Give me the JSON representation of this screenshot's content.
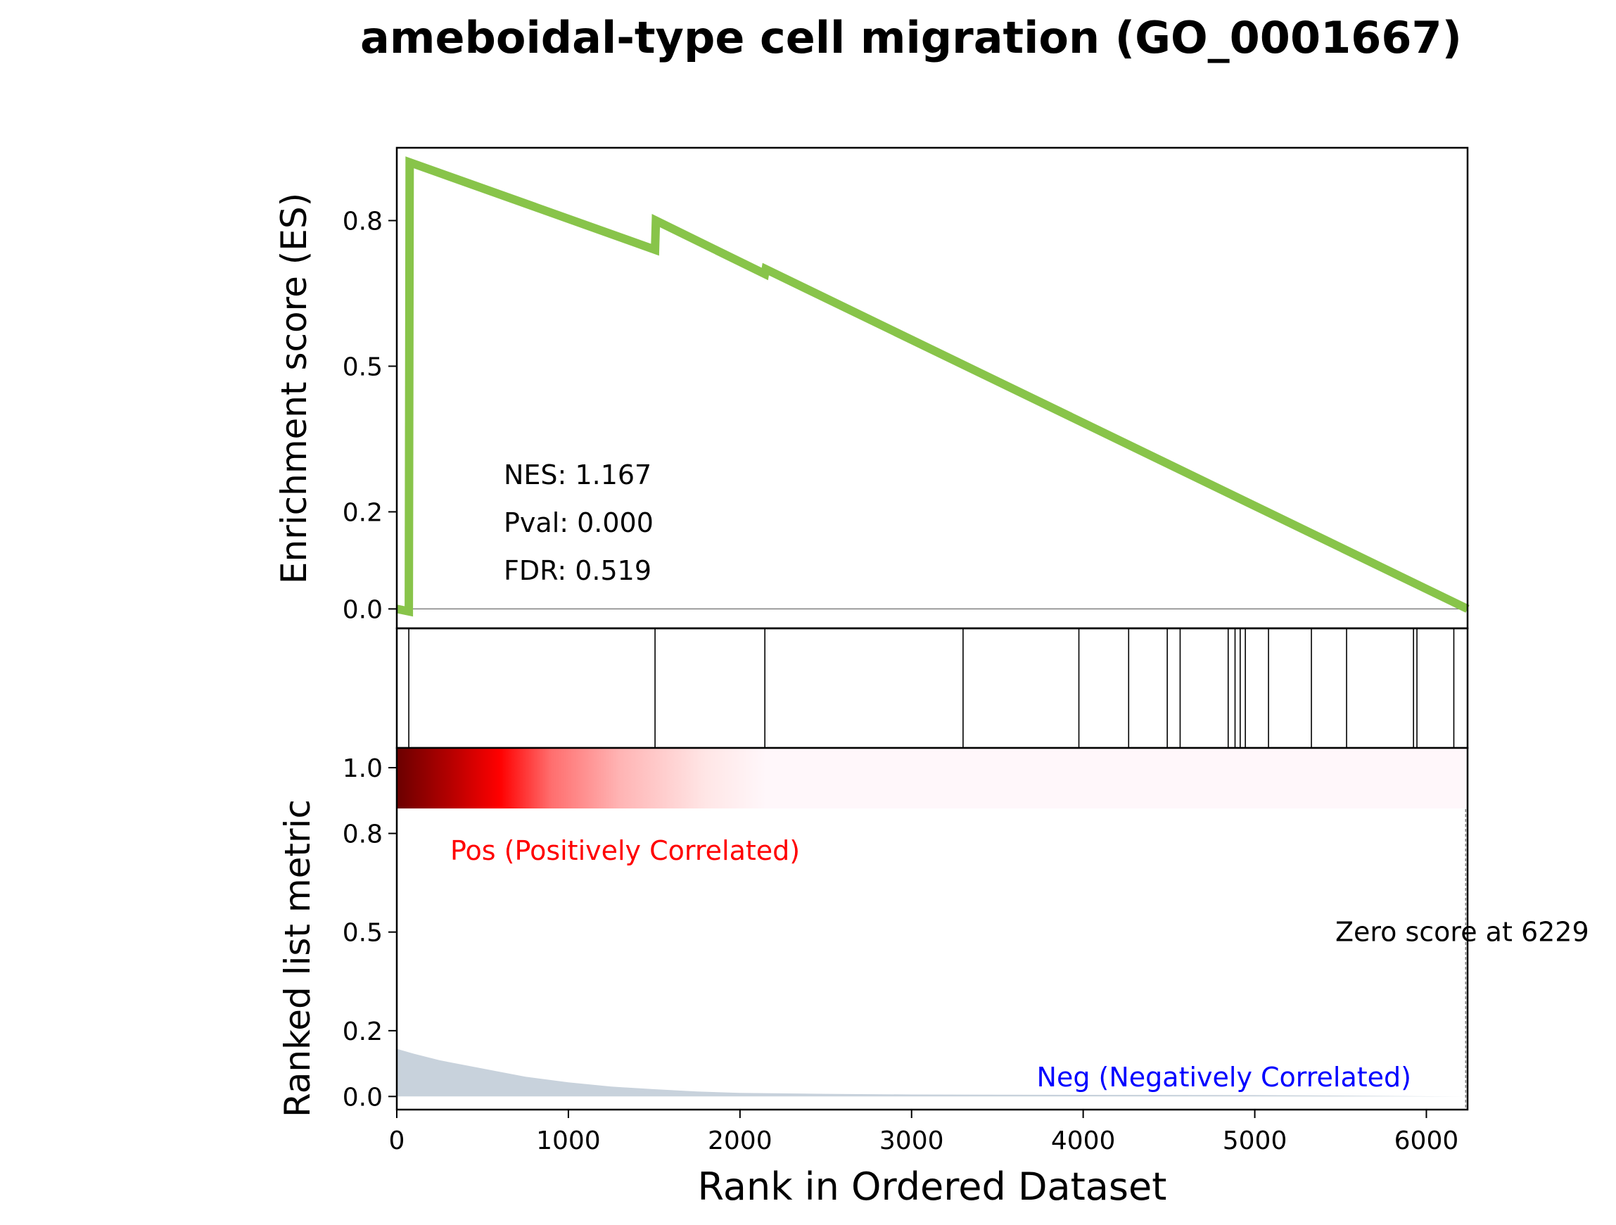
{
  "chart_data": {
    "title": "ameboidal-type cell migration (GO_0001667)",
    "type": "line",
    "es_panel": {
      "ylabel": "Enrichment score (ES)",
      "ylim": [
        -0.04,
        0.95
      ],
      "yticks": [
        0.0,
        0.2,
        0.5,
        0.8
      ],
      "ytick_labels": [
        "0.0",
        "0.2",
        "0.5",
        "0.8"
      ],
      "zero_line": true,
      "line_color": "#88c44a",
      "es_curve": {
        "x": [
          0,
          70,
          75,
          1505,
          1510,
          2145,
          2150,
          6240
        ],
        "y": [
          0.0,
          -0.005,
          0.92,
          0.74,
          0.8,
          0.69,
          0.7,
          0.0
        ]
      },
      "stats": {
        "nes": "NES: 1.167",
        "pval": "Pval: 0.000",
        "fdr": "FDR: 0.519"
      }
    },
    "hits_panel": {
      "hit_positions": [
        70,
        1505,
        2145,
        3300,
        3975,
        4265,
        4490,
        4565,
        4845,
        4885,
        4915,
        4945,
        5080,
        5330,
        5535,
        5925,
        5945,
        6160
      ]
    },
    "heatmap_band": {
      "colors": [
        "#6b0000",
        "#b20000",
        "#ff0000",
        "#ff6e6e",
        "#ffb4b4",
        "#ffe6e6",
        "#fff7fa"
      ],
      "color_stops_rank": [
        0,
        300,
        600,
        900,
        1300,
        1800,
        2150
      ]
    },
    "ranked_panel": {
      "ylabel": "Ranked list metric",
      "xlabel": "Rank in Ordered Dataset",
      "xlim": [
        0,
        6240
      ],
      "xticks": [
        0,
        1000,
        2000,
        3000,
        4000,
        5000,
        6000
      ],
      "xtick_labels": [
        "0",
        "1000",
        "2000",
        "3000",
        "4000",
        "5000",
        "6000"
      ],
      "ylim": [
        -0.04,
        1.06
      ],
      "yticks": [
        0.0,
        0.2,
        0.5,
        0.8,
        1.0
      ],
      "ytick_labels": [
        "0.0",
        "0.2",
        "0.5",
        "0.8",
        "1.0"
      ],
      "fill_color": "#c8d2dc",
      "metric_curve": {
        "x": [
          0,
          100,
          250,
          500,
          750,
          1000,
          1250,
          1500,
          1750,
          2000,
          2500,
          3000,
          4000,
          5000,
          6229
        ],
        "y": [
          0.145,
          0.13,
          0.11,
          0.085,
          0.06,
          0.043,
          0.03,
          0.022,
          0.015,
          0.011,
          0.008,
          0.006,
          0.005,
          0.004,
          0.0
        ]
      },
      "pos_label": "Pos (Positively Correlated)",
      "pos_color": "#ff0000",
      "neg_label": "Neg (Negatively Correlated)",
      "neg_color": "#0000ff",
      "zero_score_label": "Zero score at 6229",
      "zero_score_rank": 6229
    }
  }
}
